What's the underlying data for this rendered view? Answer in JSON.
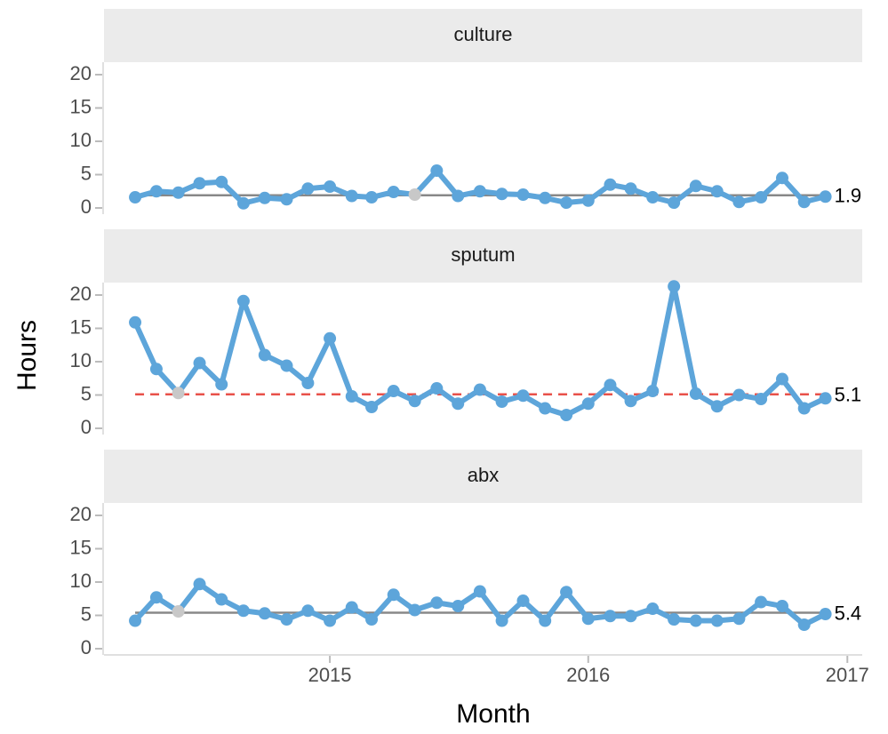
{
  "chart_data": {
    "type": "line",
    "xlabel": "Month",
    "ylabel": "Hours",
    "x": [
      "2014-04",
      "2014-05",
      "2014-06",
      "2014-07",
      "2014-08",
      "2014-09",
      "2014-10",
      "2014-11",
      "2014-12",
      "2015-01",
      "2015-02",
      "2015-03",
      "2015-04",
      "2015-05",
      "2015-06",
      "2015-07",
      "2015-08",
      "2015-09",
      "2015-10",
      "2015-11",
      "2015-12",
      "2016-01",
      "2016-02",
      "2016-03",
      "2016-04",
      "2016-05",
      "2016-06",
      "2016-07",
      "2016-08",
      "2016-09",
      "2016-10",
      "2016-11",
      "2016-12"
    ],
    "xlim": [
      "2014-02-16",
      "2017-01-22"
    ],
    "xticks": [
      "2015",
      "2016",
      "2017"
    ],
    "ylim": [
      -0.93,
      21.87
    ],
    "yticks": [
      0,
      5,
      10,
      15,
      20
    ],
    "line_color": "#5da5da",
    "muted_color": "#c8c8c8",
    "panels": [
      {
        "title": "culture",
        "center": 1.9,
        "center_color": "#888888",
        "center_dashed": false,
        "muted_index": 13,
        "values": [
          1.6,
          2.5,
          2.3,
          3.7,
          3.9,
          0.7,
          1.5,
          1.3,
          2.9,
          3.2,
          1.8,
          1.6,
          2.4,
          2.0,
          5.6,
          1.8,
          2.5,
          2.1,
          2.0,
          1.5,
          0.8,
          1.1,
          3.5,
          2.9,
          1.6,
          0.8,
          3.3,
          2.5,
          0.9,
          1.6,
          4.5,
          0.9,
          1.7
        ]
      },
      {
        "title": "sputum",
        "center": 5.1,
        "center_color": "#e8514a",
        "center_dashed": true,
        "muted_index": 2,
        "values": [
          15.9,
          8.9,
          5.3,
          9.8,
          6.6,
          19.1,
          11.0,
          9.4,
          6.8,
          13.5,
          4.8,
          3.2,
          5.6,
          4.1,
          6.0,
          3.7,
          5.8,
          4.0,
          4.9,
          3.0,
          2.0,
          3.7,
          6.5,
          4.1,
          5.6,
          21.3,
          5.2,
          3.3,
          5.0,
          4.4,
          7.4,
          3.0,
          4.5
        ]
      },
      {
        "title": "abx",
        "center": 5.4,
        "center_color": "#888888",
        "center_dashed": false,
        "muted_index": 2,
        "values": [
          4.2,
          7.7,
          5.6,
          9.7,
          7.4,
          5.7,
          5.3,
          4.4,
          5.7,
          4.2,
          6.2,
          4.4,
          8.1,
          5.8,
          6.9,
          6.4,
          8.6,
          4.2,
          7.2,
          4.2,
          8.5,
          4.5,
          4.9,
          4.9,
          6.0,
          4.4,
          4.2,
          4.2,
          4.5,
          7.0,
          6.4,
          3.6,
          5.2
        ]
      }
    ]
  }
}
